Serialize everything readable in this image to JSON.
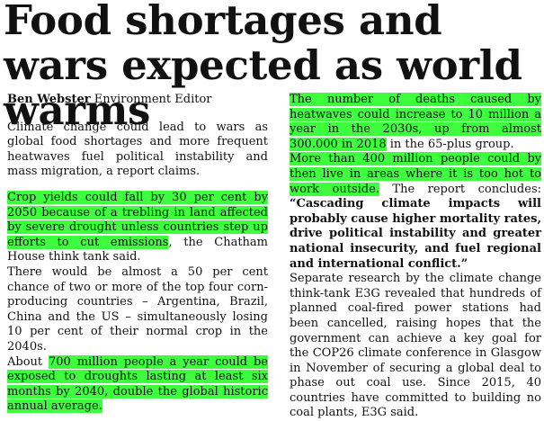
{
  "headline": "Food shortages and wars expected as world warms",
  "byline": {
    "author": "Ben Webster",
    "role": "Environment Editor"
  },
  "columns": [
    {
      "paragraphs": [
        {
          "runs": [
            {
              "text": "Climate change could lead to wars as global food shortages and more frequent heatwaves fuel political instability and mass migration, a report claims."
            }
          ]
        },
        {
          "runs": [
            {
              "text": "Crop yields could fall by 30 per cent by 2050 because of a trebling in land affected by severe drought unless countries step up efforts to cut emissions",
              "highlight": true
            },
            {
              "text": ", the Chatham House think tank said."
            }
          ]
        },
        {
          "runs": [
            {
              "text": "There would be almost a 50 per cent chance of two or more of the top four corn-producing countries – Argentina, Brazil, China and the US – simultaneously losing 10 per cent of their normal crop in the 2040s."
            }
          ]
        },
        {
          "runs": [
            {
              "text": "About "
            },
            {
              "text": "700 million people a year could be exposed to droughts lasting at least six months by 2040, double the global historic annual average.",
              "highlight": true
            }
          ]
        }
      ]
    },
    {
      "paragraphs": [
        {
          "runs": [
            {
              "text": "The number of deaths caused by heatwaves could increase to 10 million a year in the 2030s, up from almost 300.000 in 2018",
              "highlight": true
            },
            {
              "text": " in the 65-plus group."
            }
          ]
        },
        {
          "runs": [
            {
              "text": "More than 400 million people could by then live in areas where it is too hot to work outside.",
              "highlight": true
            },
            {
              "text": " The report concludes: "
            },
            {
              "text": "“Cascading climate impacts will probably cause higher mortality rates, drive political instability and greater national insecurity, and fuel regional and international conflict.”",
              "bold": true
            }
          ]
        },
        {
          "runs": [
            {
              "text": "Separate research by the climate change think-tank E3G revealed that hundreds of planned coal-fired power stations had been cancelled, raising hopes that the government can achieve a key goal for the COP26 climate conference in Glasgow in November of securing a global deal to phase out coal use. Since 2015, 40 countries have committed to building no coal plants, E3G said."
            }
          ]
        }
      ]
    }
  ]
}
